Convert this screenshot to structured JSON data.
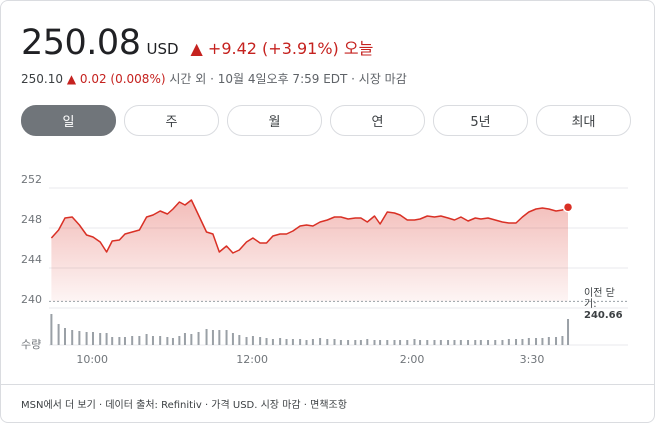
{
  "header": {
    "price": "250.08",
    "currency": "USD",
    "change": "+9.42 (+3.91%)",
    "period": "오늘",
    "after_price": "250.10",
    "after_change": "0.02 (0.008%)",
    "after_note": "시간 외 · 10월 4일오후 7:59 EDT · 시장 마감"
  },
  "tabs": [
    "일",
    "주",
    "월",
    "연",
    "5년",
    "최대"
  ],
  "footer": "MSN에서 더 보기 · 데이터 출처: Refinitiv · 가격 USD. 시장 마감 · 면책조항",
  "chart_data": {
    "type": "line",
    "color": "#d93025",
    "grid": true,
    "x": [
      9.49,
      9.58,
      9.66,
      9.75,
      9.84,
      9.93,
      10.01,
      10.1,
      10.18,
      10.25,
      10.34,
      10.41,
      10.5,
      10.59,
      10.68,
      10.76,
      10.85,
      10.94,
      11.01,
      11.09,
      11.16,
      11.24,
      11.33,
      11.43,
      11.51,
      11.59,
      11.68,
      11.76,
      11.84,
      11.93,
      12.01,
      12.1,
      12.18,
      12.26,
      12.35,
      12.43,
      12.51,
      12.6,
      12.68,
      12.76,
      12.85,
      12.94,
      13.03,
      13.11,
      13.2,
      13.29,
      13.36,
      13.44,
      13.53,
      13.6,
      13.69,
      13.78,
      13.85,
      13.94,
      14.03,
      14.1,
      14.19,
      14.28,
      14.36,
      14.45,
      14.53,
      14.61,
      14.7,
      14.79,
      14.86,
      14.95,
      15.04,
      15.13,
      15.21,
      15.3,
      15.38,
      15.46,
      15.55,
      15.63,
      15.71,
      15.8,
      15.88,
      15.95
    ],
    "values": [
      247.0,
      247.8,
      249.0,
      249.1,
      248.3,
      247.3,
      247.1,
      246.6,
      245.6,
      246.7,
      246.8,
      247.4,
      247.6,
      247.8,
      249.1,
      249.3,
      249.7,
      249.4,
      249.9,
      250.6,
      250.3,
      250.8,
      249.3,
      247.6,
      247.4,
      245.6,
      246.2,
      245.5,
      245.8,
      246.6,
      247.0,
      246.5,
      246.5,
      247.2,
      247.4,
      247.4,
      247.7,
      248.2,
      248.3,
      248.2,
      248.6,
      248.8,
      249.1,
      249.1,
      248.9,
      249.0,
      249.0,
      248.6,
      249.2,
      248.4,
      249.6,
      249.5,
      249.3,
      248.8,
      248.8,
      248.9,
      249.2,
      249.1,
      249.2,
      249.0,
      248.8,
      249.1,
      248.7,
      249.0,
      248.9,
      249.0,
      248.8,
      248.6,
      248.5,
      248.5,
      249.1,
      249.6,
      249.9,
      250.0,
      249.9,
      249.7,
      249.8,
      250.08
    ],
    "xlim": [
      9.46,
      16.7
    ],
    "xticks": [
      {
        "value": 10,
        "label": "10:00"
      },
      {
        "value": 12,
        "label": "12:00"
      },
      {
        "value": 14,
        "label": "2:00"
      },
      {
        "value": 15.5,
        "label": "3:30"
      }
    ],
    "ylim": [
      240,
      252
    ],
    "yticks": [
      252,
      248,
      244,
      240
    ],
    "prev_close_label": "이전 닫기:",
    "prev_close": 240.66,
    "volume_label": "수량",
    "volume_color": "#9aa0a6",
    "volume_lim": [
      0,
      32
    ],
    "volume": [
      31,
      21,
      17,
      15,
      14,
      13,
      13,
      12,
      12,
      8,
      8,
      8,
      9,
      9,
      11,
      9,
      9,
      8,
      7,
      9,
      12,
      11,
      13,
      16,
      15,
      15,
      15,
      12,
      10,
      8,
      9,
      8,
      7,
      6,
      7,
      6,
      6,
      6,
      5,
      6,
      7,
      6,
      6,
      5,
      5,
      5,
      5,
      6,
      5,
      5,
      5,
      5,
      5,
      5,
      6,
      5,
      5,
      5,
      5,
      5,
      5,
      5,
      5,
      5,
      5,
      5,
      5,
      5,
      6,
      6,
      6,
      7,
      7,
      7,
      8,
      8,
      9,
      26
    ]
  }
}
